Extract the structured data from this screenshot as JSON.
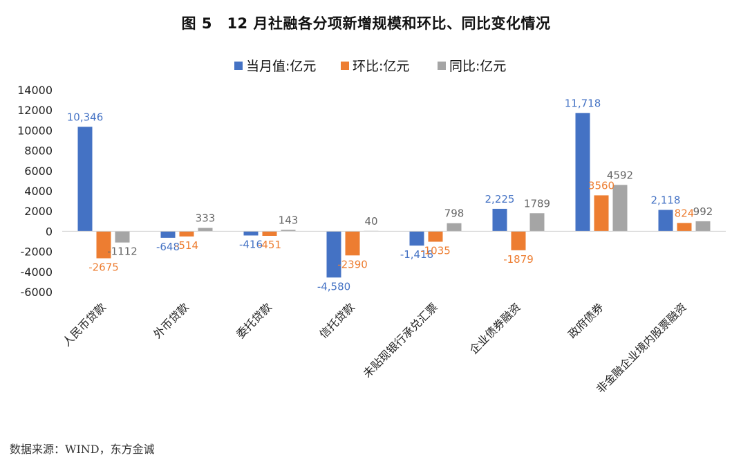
{
  "chart_data": {
    "type": "bar",
    "title": "图 5　12 月社融各分项新增规模和环比、同比变化情况",
    "xlabel": "",
    "ylabel": "",
    "ylim": [
      -6000,
      14000
    ],
    "yticks": [
      14000,
      12000,
      10000,
      8000,
      6000,
      4000,
      2000,
      0,
      -2000,
      -4000,
      -6000
    ],
    "grid": false,
    "legend_position": "top-center",
    "categories": [
      "人民币贷款",
      "外币贷款",
      "委托贷款",
      "信托贷款",
      "未贴现银行承兑汇票",
      "企业债券融资",
      "政府债券",
      "非金融企业境内股票融资"
    ],
    "series": [
      {
        "name": "当月值:亿元",
        "color": "#4472C4",
        "label_color": "#4472C4",
        "values": [
          10346,
          -648,
          -416,
          -4580,
          -1418,
          2225,
          11718,
          2118
        ],
        "labels": [
          "10,346",
          "-648",
          "-416",
          "-4,580",
          "-1,418",
          "2,225",
          "11,718",
          "2,118"
        ]
      },
      {
        "name": "环比:亿元",
        "color": "#ED7D31",
        "label_color": "#ED7D31",
        "values": [
          -2675,
          -514,
          -451,
          -2390,
          -1035,
          -1879,
          3560,
          824
        ],
        "labels": [
          "-2675",
          "-514",
          "-451",
          "-2390",
          "-1035",
          "-1879",
          "3560",
          "824"
        ]
      },
      {
        "name": "同比:亿元",
        "color": "#A5A5A5",
        "label_color": "#666666",
        "values": [
          -1112,
          333,
          143,
          40,
          798,
          1789,
          4592,
          992
        ],
        "labels": [
          "-1112",
          "333",
          "143",
          "40",
          "798",
          "1789",
          "4592",
          "992"
        ]
      }
    ]
  },
  "source": "数据来源：WIND，东方金诚"
}
